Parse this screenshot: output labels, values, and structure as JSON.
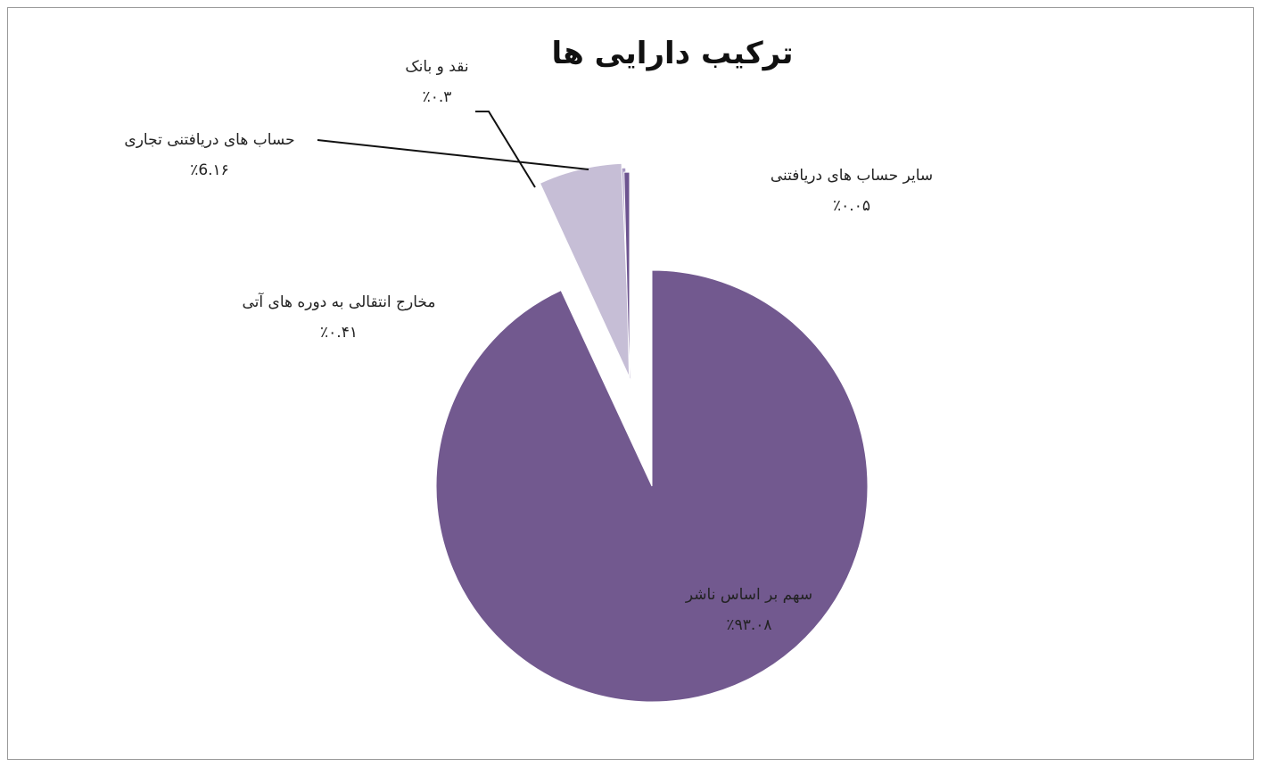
{
  "chart_data": {
    "type": "pie",
    "title": "ترکیب دارایی ها",
    "slices": [
      {
        "label": "سهم بر اساس ناشر",
        "value": 93.08,
        "value_label": "٪۹۳.۰۸",
        "color": "#72598f"
      },
      {
        "label": "سایر حساب های دریافتنی",
        "value": 0.05,
        "value_label": "٪۰.۰۵",
        "color": "#8e77ab"
      },
      {
        "label": "حساب های دریافتنی تجاری",
        "value": 6.16,
        "value_label": "٪6.۱۶",
        "color": "#c6bed6"
      },
      {
        "label": "نقد و بانک",
        "value": 0.3,
        "value_label": "٪۰.۳",
        "color": "#a999c4"
      },
      {
        "label": "مخارج انتقالی به دوره های آتی",
        "value": 0.41,
        "value_label": "٪۰.۴۱",
        "color": "#6d5490"
      }
    ]
  }
}
